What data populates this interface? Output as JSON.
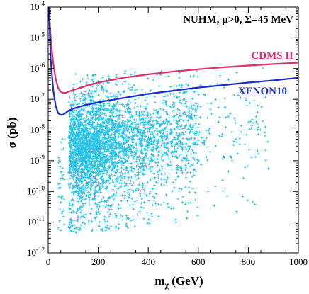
{
  "chart_data": {
    "type": "scatter",
    "title": "",
    "annotation": "NUHM, μ>0, Σ=45 MeV",
    "xlabel": "m",
    "xlabel_sub": "χ",
    "xlabel_unit": " (GeV)",
    "ylabel": "σ (pb)",
    "xlim": [
      0,
      1000
    ],
    "ylim": [
      1e-12,
      0.0001
    ],
    "yscale": "log",
    "x_ticks": [
      0,
      200,
      400,
      600,
      800,
      1000
    ],
    "x_tick_labels": [
      "0",
      "200",
      "400",
      "600",
      "800",
      "1000"
    ],
    "y_ticks": [
      1e-12,
      1e-11,
      1e-10,
      1e-09,
      1e-08,
      1e-07,
      1e-06,
      1e-05,
      0.0001
    ],
    "y_tick_base": "10",
    "y_tick_exponents": [
      "-12",
      "-11",
      "-10",
      "-9",
      "-8",
      "-7",
      "-6",
      "-5",
      "-4"
    ],
    "grid": false,
    "scatter_color": "#29c3e8",
    "scatter_cloud": {
      "description_points": [
        {
          "x": 100,
          "y": 3e-09
        },
        {
          "x": 150,
          "y": 1e-08
        },
        {
          "x": 200,
          "y": 3e-09
        },
        {
          "x": 250,
          "y": 2e-08
        },
        {
          "x": 300,
          "y": 1e-09
        },
        {
          "x": 400,
          "y": 1e-08
        },
        {
          "x": 500,
          "y": 5e-08
        },
        {
          "x": 600,
          "y": 5e-09
        },
        {
          "x": 700,
          "y": 3e-08
        },
        {
          "x": 800,
          "y": 1e-08
        },
        {
          "x": 850,
          "y": 2e-09
        },
        {
          "x": 120,
          "y": 1e-10
        },
        {
          "x": 300,
          "y": 5e-11
        },
        {
          "x": 500,
          "y": 1e-11
        },
        {
          "x": 200,
          "y": 1e-06
        },
        {
          "x": 350,
          "y": 5e-07
        },
        {
          "x": 50,
          "y": 5e-12
        }
      ],
      "x_range": [
        40,
        900
      ],
      "y_range": [
        5e-12,
        2e-06
      ]
    },
    "series": [
      {
        "name": "CDMS II",
        "color": "#e0306a",
        "x": [
          3,
          10,
          20,
          30,
          40,
          50,
          60,
          70,
          80,
          100,
          150,
          200,
          300,
          400,
          500,
          600,
          700,
          800,
          900,
          1000
        ],
        "y": [
          0.0001,
          1e-05,
          1.5e-06,
          4.5e-07,
          2.3e-07,
          1.75e-07,
          1.6e-07,
          1.62e-07,
          1.75e-07,
          2e-07,
          2.7e-07,
          3.5e-07,
          5e-07,
          6.5e-07,
          8e-07,
          9.5e-07,
          1.1e-06,
          1.25e-06,
          1.4e-06,
          1.55e-06
        ]
      },
      {
        "name": "XENON10",
        "color": "#1a2ccc",
        "x": [
          3,
          10,
          20,
          30,
          40,
          50,
          60,
          70,
          80,
          100,
          150,
          200,
          300,
          400,
          500,
          600,
          700,
          800,
          900,
          1000
        ],
        "y": [
          0.0001,
          2e-06,
          2e-07,
          6e-08,
          3.5e-08,
          3.1e-08,
          3.2e-08,
          3.6e-08,
          4.2e-08,
          5e-08,
          6.5e-08,
          8e-08,
          1.1e-07,
          1.5e-07,
          1.9e-07,
          2.4e-07,
          2.9e-07,
          3.5e-07,
          4.1e-07,
          5e-07
        ]
      }
    ]
  }
}
